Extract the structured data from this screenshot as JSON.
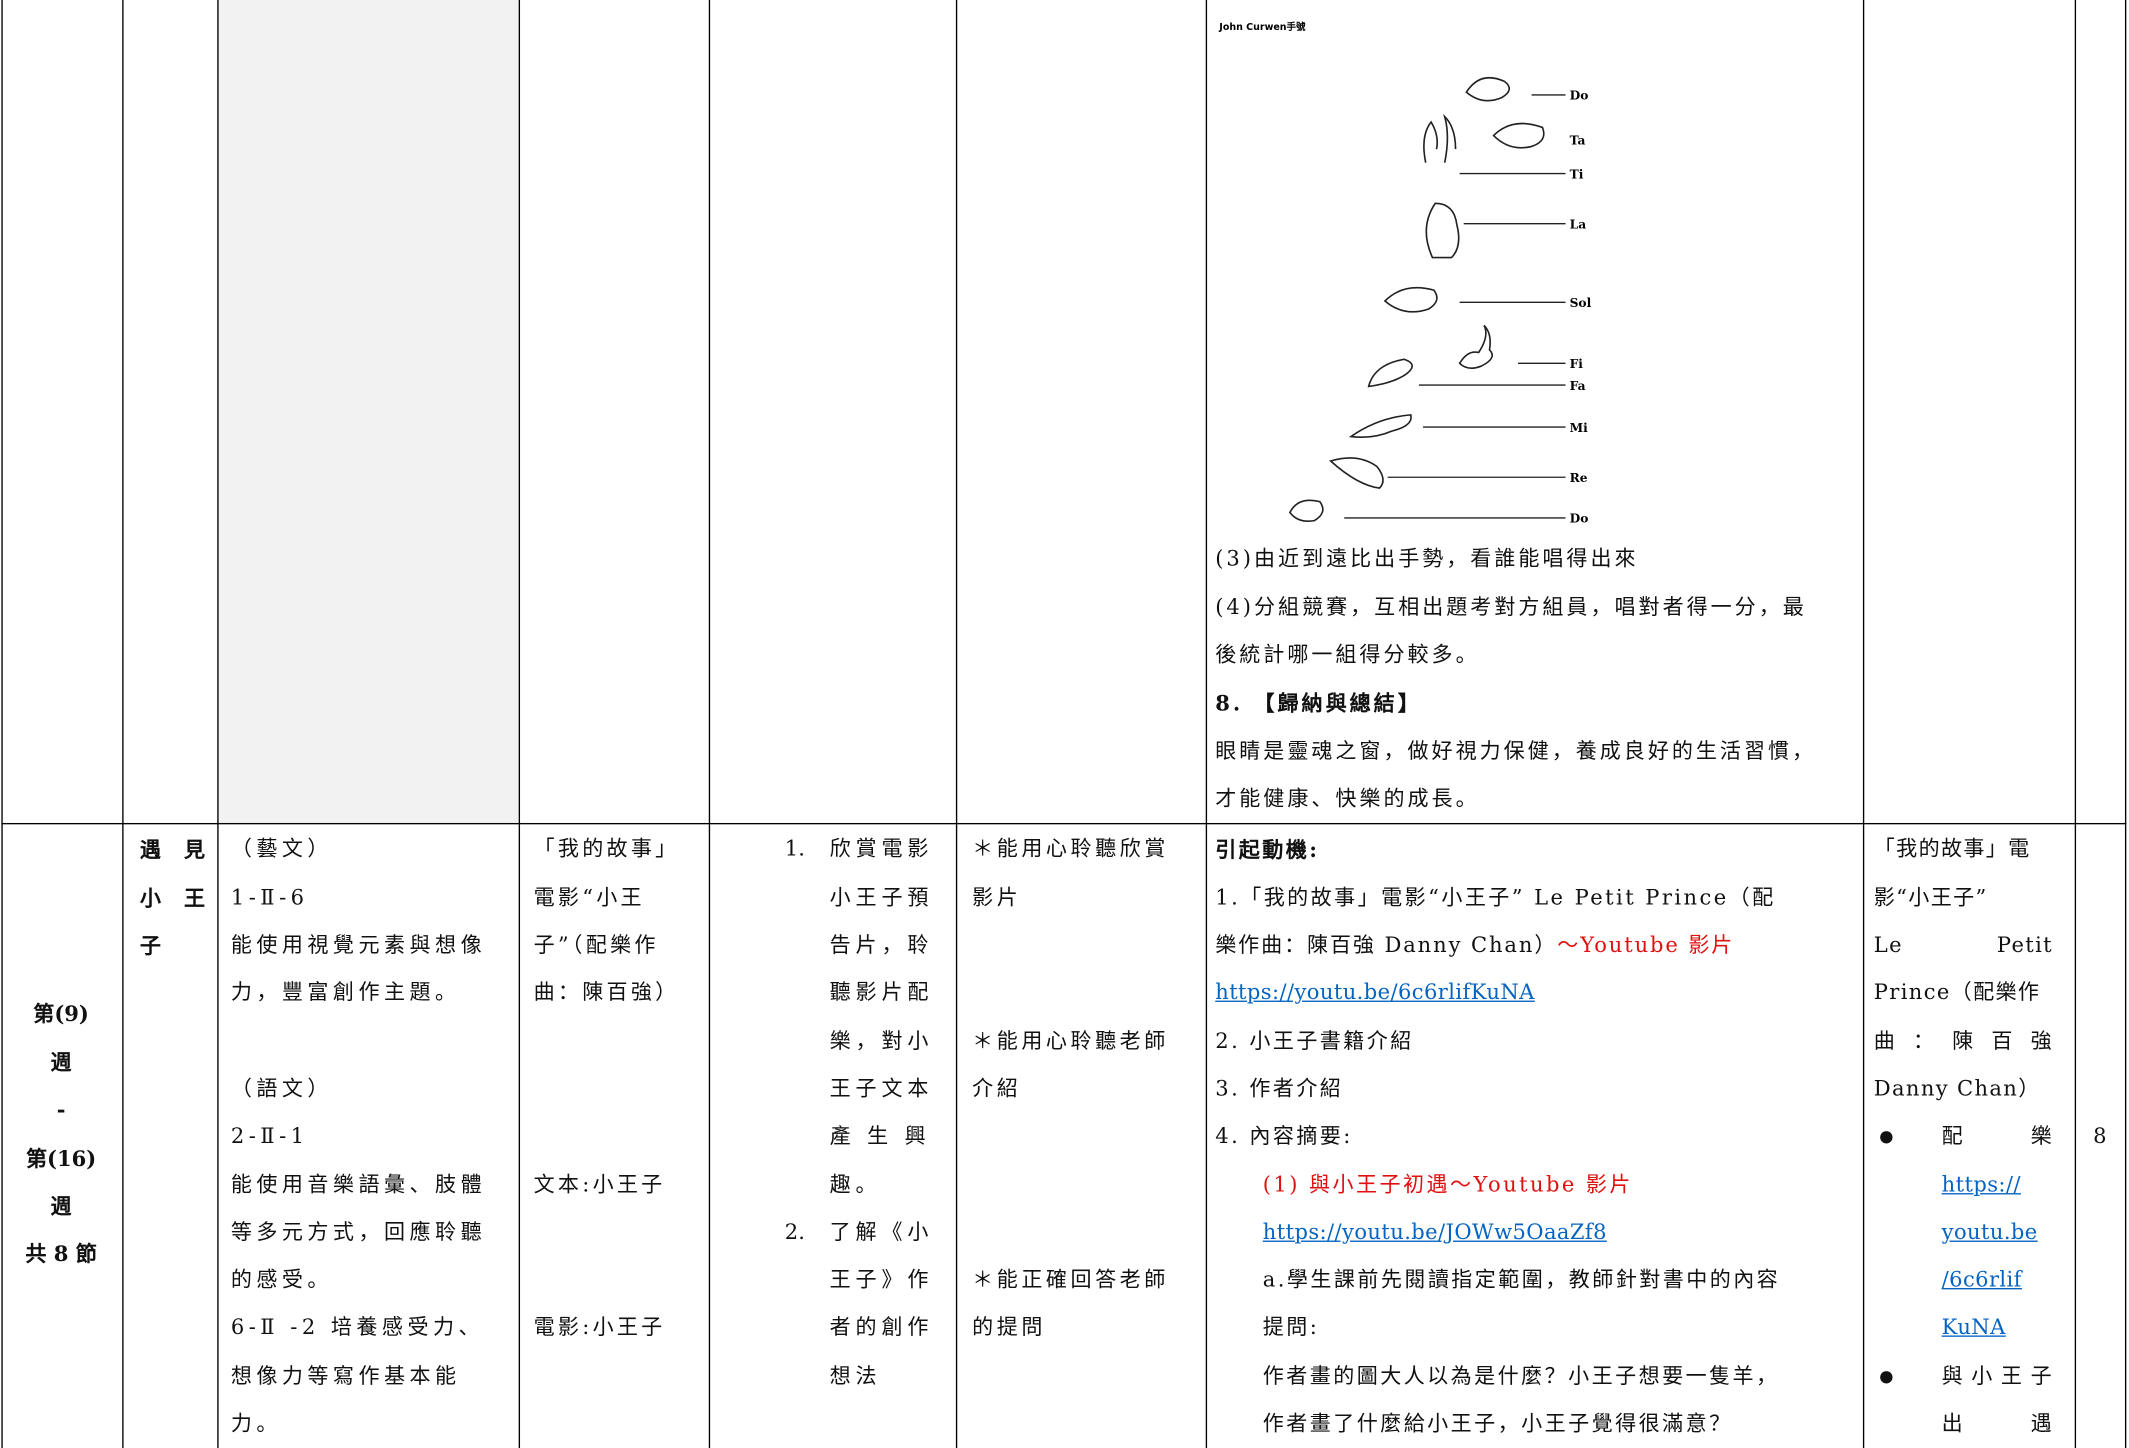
{
  "top_row": {
    "figure": {
      "title": "John Curwen手號",
      "labels": [
        "Do",
        "Ta",
        "Ti",
        "La",
        "Sol",
        "Fi",
        "Fa",
        "Mi",
        "Re",
        "Do"
      ]
    },
    "activity": [
      "(3)由近到遠比出手勢，看誰能唱得出來",
      "(4)分組競賽，互相出題考對方組員，唱對者得一分，最",
      "後統計哪一組得分較多。",
      "8. 【歸納與總結】",
      "眼睛是靈魂之窗，做好視力保健，養成良好的生活習慣，",
      "才能健康、快樂的成長。"
    ]
  },
  "bottom_row": {
    "week": [
      "第(9)",
      "週",
      "-",
      "第(16)",
      "週",
      "共 8 節"
    ],
    "unit": [
      "遇 見",
      "小 王",
      "子"
    ],
    "indicators": [
      "（藝文）",
      "1-Ⅱ-6",
      "能使用視覺元素與想像",
      "力，豐富創作主題。",
      "（語文）",
      "2-Ⅱ-1",
      "能使用音樂語彙、肢體",
      "等多元方式，回應聆聽",
      "的感受。",
      "6-Ⅱ -2 培養感受力、",
      "想像力等寫作基本能",
      "力。"
    ],
    "content": [
      "「我的故事」",
      "電影“小王",
      "子”（配樂作",
      "曲：陳百強）",
      "文本:小王子",
      "電影:小王子"
    ],
    "objectives": [
      {
        "number": "1.",
        "lines": [
          "欣賞電影",
          "小王子預",
          "告片，聆",
          "聽影片配",
          "樂，對小",
          "王子文本",
          "產 生 興",
          "趣。"
        ]
      },
      {
        "number": "2.",
        "lines": [
          "了解《小",
          "王子》作",
          "者的創作",
          "想法"
        ]
      }
    ],
    "assessment": [
      "＊能用心聆聽欣賞",
      "影片",
      "＊能用心聆聽老師",
      "介紹",
      "＊能正確回答老師",
      "的提問"
    ],
    "activity": [
      "引起動機:",
      "1.「我的故事」電影“小王子” Le Petit Prince（配",
      [
        "樂作曲：陳百強 Danny Chan）",
        "～Youtube 影片"
      ],
      "https://youtu.be/6c6rlifKuNA",
      "2.  小王子書籍介紹",
      "3.  作者介紹",
      "4.  內容摘要:",
      "(1) 與小王子初遇～Youtube 影片",
      "https://youtu.be/JOWw5OaaZf8",
      "a.學生課前先閱讀指定範圍，教師針對書中的內容",
      "提問:",
      "作者畫的圖大人以為是什麼？小王子想要一隻羊，",
      "作者畫了什麼給小王子，小王子覺得很滿意？"
    ],
    "resources": [
      "「我的故事」電",
      "影“小王子”",
      "Le Petit",
      "Prince（配樂作",
      "曲 ： 陳 百 強",
      "Danny Chan）",
      "配 樂",
      "https://",
      "youtu.be",
      "/6c6rlif",
      "KuNA",
      "與小王子",
      "出 遇"
    ],
    "sessions": "8"
  }
}
